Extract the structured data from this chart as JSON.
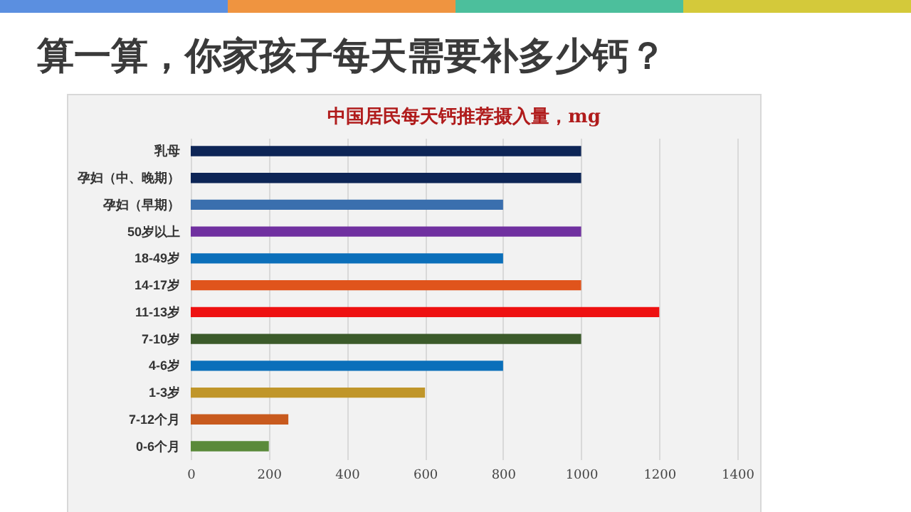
{
  "chart_data": {
    "type": "bar",
    "orientation": "horizontal",
    "title": "算一算，你家孩子每天需要补多少钙？",
    "subtitle": "中国居民每天钙推荐摄入量，mg",
    "categories": [
      "乳母",
      "孕妇（中、晚期）",
      "孕妇（早期）",
      "50岁以上",
      "18-49岁",
      "14-17岁",
      "11-13岁",
      "7-10岁",
      "4-6岁",
      "1-3岁",
      "7-12个月",
      "0-6个月"
    ],
    "values": [
      1000,
      1000,
      800,
      1000,
      800,
      1000,
      1200,
      1000,
      800,
      600,
      250,
      200
    ],
    "colors": [
      "#0d2556",
      "#0d2556",
      "#3a6fae",
      "#7030a0",
      "#0b6fba",
      "#e0541c",
      "#ee1111",
      "#3b5a2a",
      "#0b6fba",
      "#c0962a",
      "#c85a1e",
      "#5a8a3a"
    ],
    "xlim": [
      0,
      1400
    ],
    "xticks": [
      0,
      200,
      400,
      600,
      800,
      1000,
      1200,
      1400
    ],
    "grid": "x"
  }
}
